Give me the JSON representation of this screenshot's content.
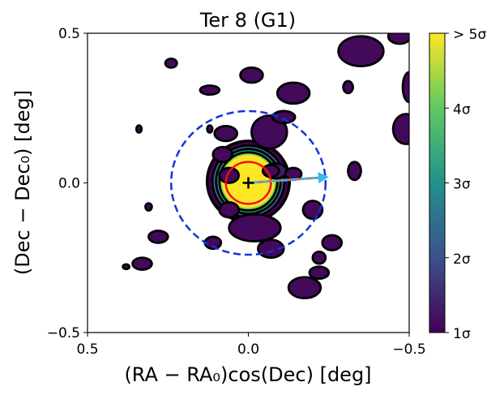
{
  "chart_data": {
    "type": "heatmap",
    "title": "Ter 8 (G1)",
    "xlabel": "(RA − RA₀)cos(Dec) [deg]",
    "ylabel": "(Dec − Dec₀) [deg]",
    "xlim": [
      0.5,
      -0.5
    ],
    "ylim": [
      -0.5,
      0.5
    ],
    "x_ticks": [
      {
        "value": 0.5,
        "label": "0.5"
      },
      {
        "value": 0.0,
        "label": "0.0"
      },
      {
        "value": -0.5,
        "label": "−0.5"
      }
    ],
    "y_ticks": [
      {
        "value": 0.5,
        "label": "0.5"
      },
      {
        "value": 0.0,
        "label": "0.0"
      },
      {
        "value": -0.5,
        "label": "−0.5"
      }
    ],
    "colorbar": {
      "min": 1,
      "max": 5,
      "colormap": [
        "#440154",
        "#3b528b",
        "#21918c",
        "#5ec962",
        "#fde725"
      ],
      "ticks": [
        {
          "value": 1,
          "label": "1σ"
        },
        {
          "value": 2,
          "label": "2σ"
        },
        {
          "value": 3,
          "label": "3σ"
        },
        {
          "value": 4,
          "label": "4σ"
        },
        {
          "value": 5,
          "label": "> 5σ"
        }
      ]
    },
    "center_marker": {
      "x": 0.0,
      "y": 0.0,
      "symbol": "+"
    },
    "inner_circle": {
      "x": 0.0,
      "y": 0.0,
      "radius": 0.07,
      "color": "#ee1111"
    },
    "outer_circle": {
      "x": 0.0,
      "y": 0.0,
      "radius": 0.24,
      "color": "#1133dd"
    },
    "proper_motion_arrow": {
      "x0": 0.0,
      "y0": 0.0,
      "x1": -0.25,
      "y1": 0.02,
      "color": "#33bbee",
      "dash_color": "#ee6622"
    },
    "overdensities": [
      {
        "x": 0.0,
        "y": 0.005,
        "rx": 0.128,
        "ry": 0.135,
        "level": 1.0
      },
      {
        "x": 0.0,
        "y": 0.005,
        "rx": 0.112,
        "ry": 0.12,
        "level": 2.2
      },
      {
        "x": 0.0,
        "y": 0.005,
        "rx": 0.1,
        "ry": 0.108,
        "level": 3.3
      },
      {
        "x": 0.0,
        "y": 0.005,
        "rx": 0.09,
        "ry": 0.097,
        "level": 4.3
      },
      {
        "x": 0.0,
        "y": 0.005,
        "rx": 0.082,
        "ry": 0.088,
        "level": 5.0
      },
      {
        "x": -0.085,
        "y": 0.04,
        "rx": 0.035,
        "ry": 0.025,
        "level": 1.3
      },
      {
        "x": -0.14,
        "y": 0.03,
        "rx": 0.025,
        "ry": 0.02,
        "level": 1.1
      },
      {
        "x": -0.065,
        "y": 0.17,
        "rx": 0.055,
        "ry": 0.055,
        "level": 1.1
      },
      {
        "x": -0.11,
        "y": 0.22,
        "rx": 0.035,
        "ry": 0.02,
        "level": 1.1
      },
      {
        "x": 0.07,
        "y": 0.165,
        "rx": 0.035,
        "ry": 0.025,
        "level": 1.1
      },
      {
        "x": -0.02,
        "y": -0.15,
        "rx": 0.08,
        "ry": 0.045,
        "level": 1.1
      },
      {
        "x": -0.07,
        "y": -0.22,
        "rx": 0.04,
        "ry": 0.03,
        "level": 1.1
      },
      {
        "x": -0.2,
        "y": -0.09,
        "rx": 0.03,
        "ry": 0.03,
        "level": 1.1
      },
      {
        "x": -0.26,
        "y": -0.2,
        "rx": 0.03,
        "ry": 0.025,
        "level": 1.1
      },
      {
        "x": -0.22,
        "y": -0.25,
        "rx": 0.02,
        "ry": 0.02,
        "level": 1.1
      },
      {
        "x": -0.22,
        "y": -0.3,
        "rx": 0.03,
        "ry": 0.02,
        "level": 1.1
      },
      {
        "x": -0.175,
        "y": -0.35,
        "rx": 0.05,
        "ry": 0.035,
        "level": 1.1
      },
      {
        "x": -0.33,
        "y": 0.04,
        "rx": 0.02,
        "ry": 0.03,
        "level": 1.1
      },
      {
        "x": -0.07,
        "y": 0.04,
        "rx": 0.025,
        "ry": 0.02,
        "level": 1.1
      },
      {
        "x": 0.11,
        "y": -0.2,
        "rx": 0.025,
        "ry": 0.02,
        "level": 1.1
      },
      {
        "x": 0.28,
        "y": -0.18,
        "rx": 0.03,
        "ry": 0.02,
        "level": 1.1
      },
      {
        "x": 0.33,
        "y": -0.27,
        "rx": 0.03,
        "ry": 0.02,
        "level": 1.1
      },
      {
        "x": -0.14,
        "y": 0.3,
        "rx": 0.05,
        "ry": 0.035,
        "level": 1.1
      },
      {
        "x": -0.31,
        "y": 0.32,
        "rx": 0.015,
        "ry": 0.02,
        "level": 1.1
      },
      {
        "x": -0.35,
        "y": 0.44,
        "rx": 0.07,
        "ry": 0.05,
        "level": 1.1
      },
      {
        "x": -0.47,
        "y": 0.49,
        "rx": 0.035,
        "ry": 0.025,
        "level": 1.1
      },
      {
        "x": -0.49,
        "y": 0.18,
        "rx": 0.04,
        "ry": 0.05,
        "level": 1.1
      },
      {
        "x": -0.5,
        "y": 0.32,
        "rx": 0.02,
        "ry": 0.05,
        "level": 1.1
      },
      {
        "x": -0.01,
        "y": 0.36,
        "rx": 0.035,
        "ry": 0.025,
        "level": 1.1
      },
      {
        "x": 0.12,
        "y": 0.31,
        "rx": 0.03,
        "ry": 0.015,
        "level": 1.1
      },
      {
        "x": 0.24,
        "y": 0.4,
        "rx": 0.018,
        "ry": 0.015,
        "level": 1.1
      },
      {
        "x": 0.08,
        "y": 0.095,
        "rx": 0.03,
        "ry": 0.025,
        "level": 1.1
      },
      {
        "x": 0.06,
        "y": 0.025,
        "rx": 0.03,
        "ry": 0.025,
        "level": 1.1
      },
      {
        "x": 0.06,
        "y": -0.09,
        "rx": 0.03,
        "ry": 0.025,
        "level": 1.1
      },
      {
        "x": 0.12,
        "y": 0.18,
        "rx": 0.008,
        "ry": 0.012,
        "level": 1.1
      },
      {
        "x": 0.34,
        "y": 0.18,
        "rx": 0.008,
        "ry": 0.012,
        "level": 1.1
      },
      {
        "x": 0.31,
        "y": -0.08,
        "rx": 0.01,
        "ry": 0.012,
        "level": 1.1
      },
      {
        "x": 0.38,
        "y": -0.28,
        "rx": 0.01,
        "ry": 0.008,
        "level": 1.1
      }
    ]
  }
}
